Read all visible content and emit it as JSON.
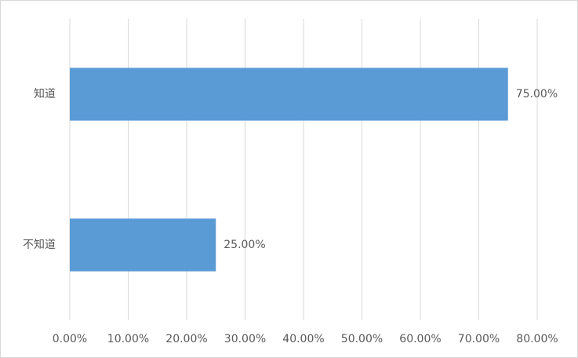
{
  "chart_data": {
    "type": "bar",
    "orientation": "horizontal",
    "categories": [
      "知道",
      "不知道"
    ],
    "values": [
      75,
      25
    ],
    "value_labels": [
      "75.00%",
      "25.00%"
    ],
    "color": "#5b9bd5",
    "xlim": [
      0,
      80
    ],
    "xticks": [
      {
        "value": 0,
        "label": "0.00%"
      },
      {
        "value": 10,
        "label": "10.00%"
      },
      {
        "value": 20,
        "label": "20.00%"
      },
      {
        "value": 30,
        "label": "30.00%"
      },
      {
        "value": 40,
        "label": "40.00%"
      },
      {
        "value": 50,
        "label": "50.00%"
      },
      {
        "value": 60,
        "label": "60.00%"
      },
      {
        "value": 70,
        "label": "70.00%"
      },
      {
        "value": 80,
        "label": "80.00%"
      }
    ],
    "grid": true
  }
}
